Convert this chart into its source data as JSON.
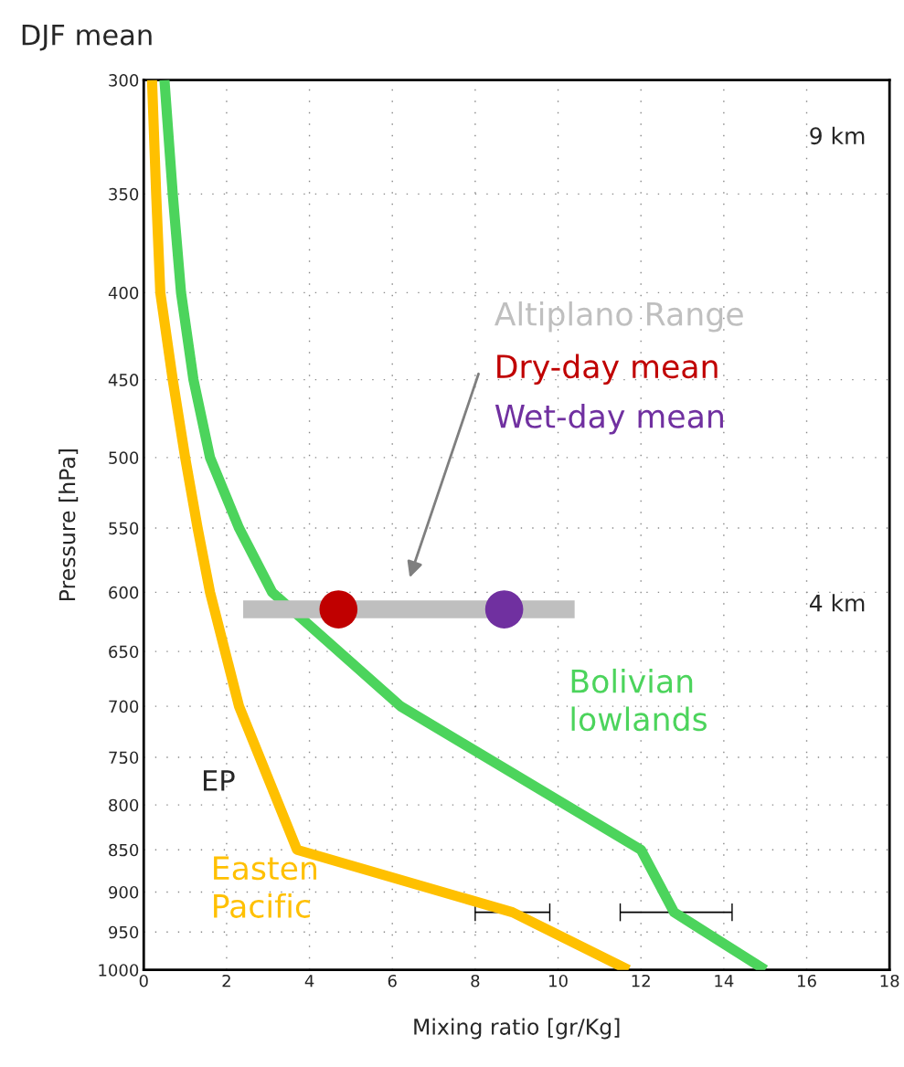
{
  "chart_data": {
    "type": "line",
    "title": "DJF mean",
    "xlabel": "Mixing ratio [gr/Kg]",
    "ylabel": "Pressure [hPa]",
    "xlim": [
      0,
      18
    ],
    "xticks": [
      0,
      2,
      4,
      6,
      8,
      10,
      12,
      14,
      16,
      18
    ],
    "ylim": [
      1000,
      300
    ],
    "yticks": [
      300,
      350,
      400,
      450,
      500,
      550,
      600,
      650,
      700,
      750,
      800,
      850,
      900,
      950,
      1000
    ],
    "log": "y",
    "grid": true,
    "legend": false,
    "marker": "none",
    "line_style": "solid",
    "series": [
      {
        "name": "Easten Pacific",
        "color": "#ffc000",
        "x": [
          0.2,
          0.3,
          0.4,
          0.7,
          1.0,
          1.3,
          1.6,
          2.3,
          3.7,
          8.9,
          11.7
        ],
        "values": [
          300,
          350,
          400,
          450,
          500,
          550,
          600,
          700,
          850,
          925,
          1000
        ],
        "xerrors": [
          null,
          null,
          null,
          null,
          null,
          null,
          null,
          null,
          null,
          [
            8.0,
            9.8
          ],
          null
        ]
      },
      {
        "name": "Bolivian lowlands",
        "color": "#4cd45c",
        "x": [
          0.5,
          0.7,
          0.9,
          1.2,
          1.6,
          2.3,
          3.1,
          6.2,
          12.0,
          12.8,
          15.0
        ],
        "values": [
          300,
          350,
          400,
          450,
          500,
          550,
          600,
          700,
          850,
          925,
          1000
        ],
        "xerrors": [
          null,
          null,
          null,
          null,
          null,
          null,
          null,
          null,
          null,
          [
            11.5,
            14.2
          ],
          null
        ]
      },
      {
        "name": "Altiplano Range",
        "color": "#bfbfbf",
        "x": [
          2.4,
          10.4
        ],
        "values": [
          614,
          614
        ]
      },
      {
        "name": "Dry-day mean",
        "type": "scatter",
        "marker": "circle",
        "color": "#c00000",
        "x": [
          4.7
        ],
        "values": [
          614
        ]
      },
      {
        "name": "Wet-day mean",
        "type": "scatter",
        "marker": "circle",
        "color": "#7030a0",
        "x": [
          8.7
        ],
        "values": [
          614
        ]
      }
    ],
    "annotations": [
      "9 km",
      "4 km",
      "EP"
    ]
  }
}
